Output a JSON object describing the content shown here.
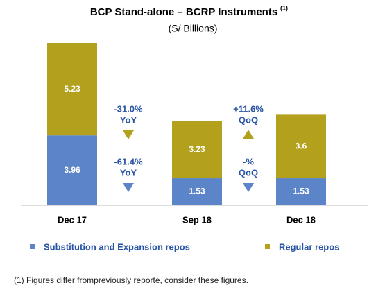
{
  "chart_data": {
    "type": "stacked_bar",
    "title": "BCP Stand-alone – BCRP Instruments",
    "title_note": "(1)",
    "subtitle": "(S/ Billions)",
    "categories": [
      "Dec 17",
      "Sep 18",
      "Dec 18"
    ],
    "series": [
      {
        "name": "Substitution and Expansion repos",
        "color": "#5b85c8",
        "values": [
          3.96,
          1.53,
          1.53
        ]
      },
      {
        "name": "Regular repos",
        "color": "#b3a11e",
        "values": [
          5.23,
          3.23,
          3.6
        ]
      }
    ],
    "annotations": [
      {
        "change": "-31.0%",
        "period": "YoY",
        "arrow": "down",
        "color": "#b3a11e"
      },
      {
        "change": "-61.4%",
        "period": "YoY",
        "arrow": "down",
        "color": "#5b85c8"
      },
      {
        "change": "+11.6%",
        "period": "QoQ",
        "arrow": "up",
        "color": "#b3a11e"
      },
      {
        "change": "-%",
        "period": "QoQ",
        "arrow": "down",
        "color": "#5b85c8"
      }
    ],
    "footnote": "(1) Figures differ frompreviously reporte, consider these figures."
  }
}
